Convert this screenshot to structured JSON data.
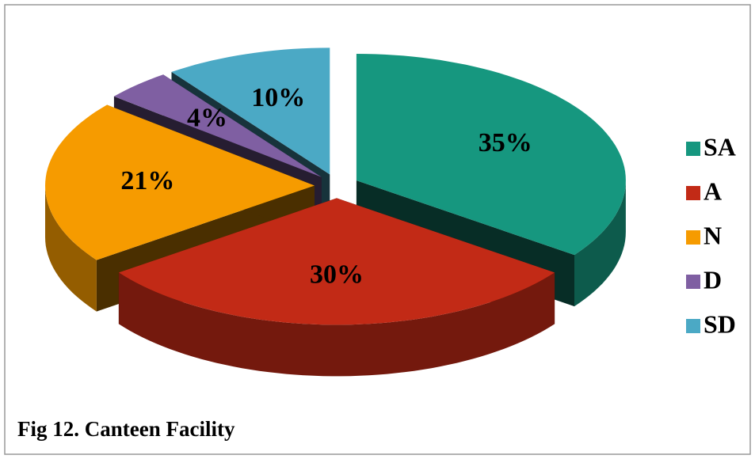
{
  "chart_data": {
    "type": "pie",
    "title": "Fig 12. Canteen Facility",
    "categories": [
      "SA",
      "A",
      "N",
      "D",
      "SD"
    ],
    "values": [
      35,
      30,
      21,
      4,
      10
    ],
    "value_labels": [
      "35%",
      "30%",
      "21%",
      "4%",
      "10%"
    ],
    "colors": [
      "#16977f",
      "#c22a16",
      "#f69b00",
      "#7f5fa2",
      "#4ba9c5"
    ],
    "legend": "right"
  }
}
